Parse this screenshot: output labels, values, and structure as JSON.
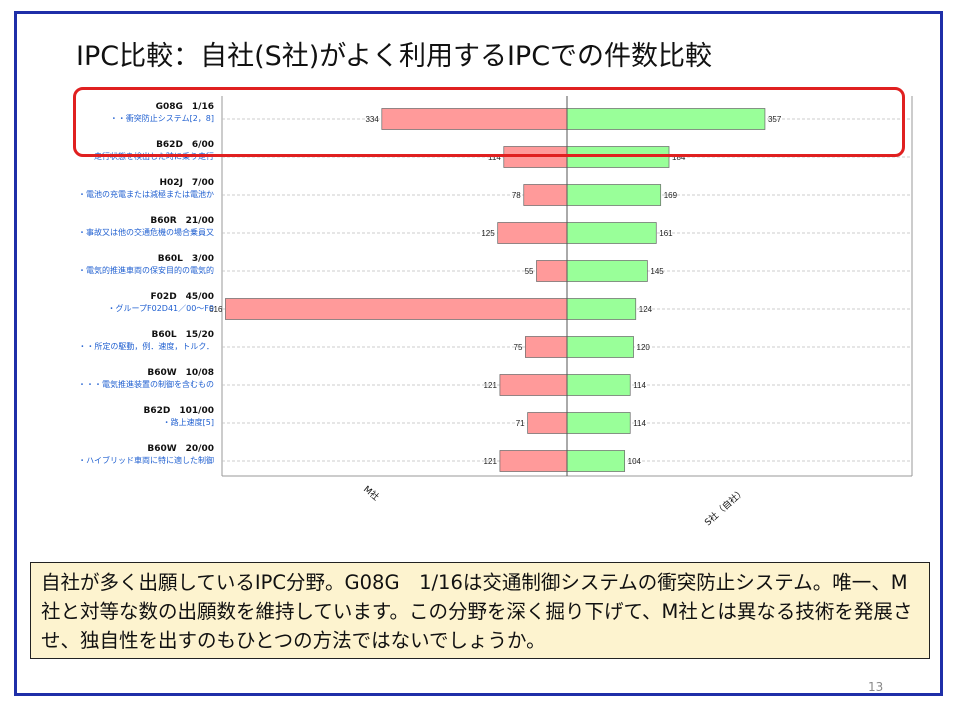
{
  "slide": {
    "title": "IPC比較：自社(S社)がよく利用するIPCでの件数比較",
    "note": "自社が多く出願しているIPC分野。G08G　1/16は交通制御システムの衝突防止システム。唯一、M社と対等な数の出願数を維持しています。この分野を深く掘り下げて、M社とは異なる技術を発展させ、独自性を出すのもひとつの方法ではないでしょうか。",
    "page_number": "13"
  },
  "colors": {
    "frame": "#1f2fa8",
    "highlight": "#e02020",
    "m_bar": "#ff9a9a",
    "s_bar": "#99ff99",
    "ipc_code": "#111111",
    "ipc_desc": "#1f5fd0",
    "note_bg": "#fdf3cf"
  },
  "chart_data": {
    "type": "bar",
    "orientation": "horizontal-diverging",
    "categories": [
      {
        "code": "G08G　1/16",
        "desc": "・・衝突防止システム[2，8]"
      },
      {
        "code": "B62D　6/00",
        "desc": "・走行状態を検出した時に乗り走行"
      },
      {
        "code": "H02J　7/00",
        "desc": "・電池の充電または減極または電池か"
      },
      {
        "code": "B60R　21/00",
        "desc": "・事故又は他の交通危機の場合乗員又"
      },
      {
        "code": "B60L　3/00",
        "desc": "・電気的推進車両の保安目的の電気的"
      },
      {
        "code": "F02D　45/00",
        "desc": "・グループF02D41／00～F0"
      },
      {
        "code": "B60L　15/20",
        "desc": "・・所定の駆動，例．速度，トルク．"
      },
      {
        "code": "B60W　10/08",
        "desc": "・・・電気推進装置の制御を含むもの"
      },
      {
        "code": "B62D　101/00",
        "desc": "・路上速度[5]"
      },
      {
        "code": "B60W　20/00",
        "desc": "・ハイブリッド車両に特に適した制御"
      }
    ],
    "series": [
      {
        "name": "M社",
        "values": [
          334,
          114,
          78,
          125,
          55,
          616,
          75,
          121,
          71,
          121
        ]
      },
      {
        "name": "S社（自社）",
        "values": [
          357,
          184,
          169,
          161,
          145,
          124,
          120,
          114,
          114,
          104
        ]
      }
    ],
    "xlim": [
      -620,
      620
    ],
    "grid": "horizontal-dashed"
  }
}
